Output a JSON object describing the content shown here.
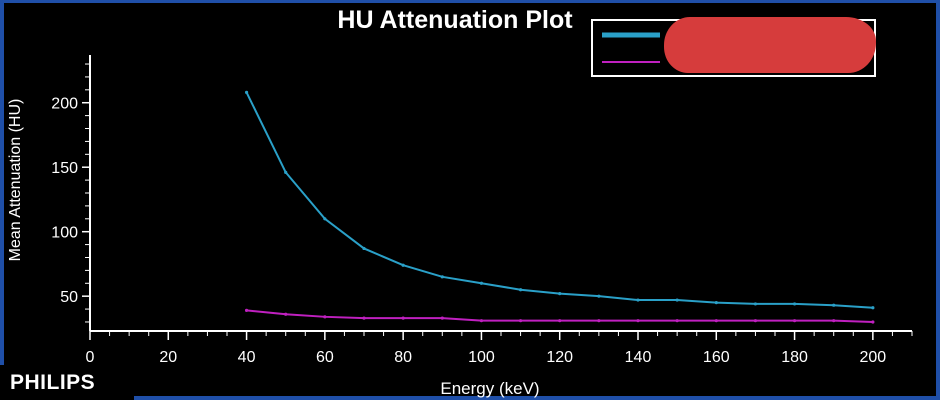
{
  "chart_data": {
    "type": "line",
    "title": "HU Attenuation Plot",
    "xlabel": "Energy (keV)",
    "ylabel": "Mean Attenuation (HU)",
    "xlim": [
      0,
      210
    ],
    "ylim": [
      23,
      237
    ],
    "xticks": [
      0,
      20,
      40,
      60,
      80,
      100,
      120,
      140,
      160,
      180,
      200
    ],
    "yticks": [
      50,
      100,
      150,
      200
    ],
    "legend_position": "top-right",
    "grid": false,
    "x": [
      40,
      50,
      60,
      70,
      80,
      90,
      100,
      110,
      120,
      130,
      140,
      150,
      160,
      170,
      180,
      190,
      200
    ],
    "series": [
      {
        "color": "#2aa0c8",
        "values": [
          208,
          146,
          110,
          87,
          74,
          65,
          60,
          55,
          52,
          50,
          47,
          47,
          45,
          44,
          44,
          43,
          41
        ]
      },
      {
        "color": "#c020c0",
        "values": [
          39,
          36,
          34,
          33,
          33,
          33,
          31,
          31,
          31,
          31,
          31,
          31,
          31,
          31,
          31,
          31,
          30
        ]
      }
    ]
  },
  "branding": {
    "logo_text": "PHILIPS"
  }
}
